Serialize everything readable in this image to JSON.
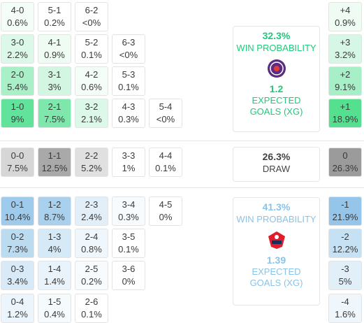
{
  "home": {
    "rows": [
      {
        "cells": [
          {
            "score": "4-0",
            "prob": "0.6%",
            "color": "#f4fdf8"
          },
          {
            "score": "5-1",
            "prob": "0.2%",
            "color": "#ffffff"
          },
          {
            "score": "6-2",
            "prob": "<0%",
            "color": "#ffffff"
          }
        ],
        "diff": {
          "label": "+4",
          "prob": "0.9%",
          "color": "#eefcf4"
        }
      },
      {
        "cells": [
          {
            "score": "3-0",
            "prob": "2.2%",
            "color": "#dcf8e9"
          },
          {
            "score": "4-1",
            "prob": "0.9%",
            "color": "#eefcf4"
          },
          {
            "score": "5-2",
            "prob": "0.1%",
            "color": "#ffffff"
          },
          {
            "score": "6-3",
            "prob": "<0%",
            "color": "#ffffff"
          }
        ],
        "diff": {
          "label": "+3",
          "prob": "3.2%",
          "color": "#d6f7e5"
        }
      },
      {
        "cells": [
          {
            "score": "2-0",
            "prob": "5.4%",
            "color": "#a9efc8"
          },
          {
            "score": "3-1",
            "prob": "3%",
            "color": "#d3f6e3"
          },
          {
            "score": "4-2",
            "prob": "0.6%",
            "color": "#f4fdf8"
          },
          {
            "score": "5-3",
            "prob": "0.1%",
            "color": "#ffffff"
          }
        ],
        "diff": {
          "label": "+2",
          "prob": "9.1%",
          "color": "#a6efc7"
        }
      },
      {
        "cells": [
          {
            "score": "1-0",
            "prob": "9%",
            "color": "#62e39c"
          },
          {
            "score": "2-1",
            "prob": "7.5%",
            "color": "#7ee8ac"
          },
          {
            "score": "3-2",
            "prob": "2.1%",
            "color": "#dcf8e9"
          },
          {
            "score": "4-3",
            "prob": "0.3%",
            "color": "#ffffff"
          },
          {
            "score": "5-4",
            "prob": "<0%",
            "color": "#ffffff"
          }
        ],
        "diff": {
          "label": "+1",
          "prob": "18.9%",
          "color": "#55e08f"
        }
      }
    ],
    "panel": {
      "prob": "32.3%",
      "label": "WIN PROBABILITY",
      "xg": "1.2",
      "xg_label": "EXPECTED GOALS (XG)",
      "color": "#1fca7a"
    }
  },
  "draw": {
    "rows": [
      {
        "cells": [
          {
            "score": "0-0",
            "prob": "7.5%",
            "color": "#d6d6d6"
          },
          {
            "score": "1-1",
            "prob": "12.5%",
            "color": "#a9a9a9"
          },
          {
            "score": "2-2",
            "prob": "5.2%",
            "color": "#e0e0e0"
          },
          {
            "score": "3-3",
            "prob": "1%",
            "color": "#ffffff"
          },
          {
            "score": "4-4",
            "prob": "0.1%",
            "color": "#ffffff"
          }
        ],
        "diff": {
          "label": "0",
          "prob": "26.3%",
          "color": "#9b9b9b"
        }
      }
    ],
    "panel": {
      "prob": "26.3%",
      "label": "DRAW",
      "color": "#444444"
    }
  },
  "away": {
    "rows": [
      {
        "cells": [
          {
            "score": "0-1",
            "prob": "10.4%",
            "color": "#9ecbeb"
          },
          {
            "score": "1-2",
            "prob": "8.7%",
            "color": "#a9d1ed"
          },
          {
            "score": "2-3",
            "prob": "2.4%",
            "color": "#e2eff9"
          },
          {
            "score": "3-4",
            "prob": "0.3%",
            "color": "#f7fbfe"
          },
          {
            "score": "4-5",
            "prob": "0%",
            "color": "#ffffff"
          }
        ],
        "diff": {
          "label": "-1",
          "prob": "21.9%",
          "color": "#95c6ea"
        }
      },
      {
        "cells": [
          {
            "score": "0-2",
            "prob": "7.3%",
            "color": "#bbdbf1"
          },
          {
            "score": "1-3",
            "prob": "4%",
            "color": "#d5e9f7"
          },
          {
            "score": "2-4",
            "prob": "0.8%",
            "color": "#f0f7fc"
          },
          {
            "score": "3-5",
            "prob": "0.1%",
            "color": "#ffffff"
          }
        ],
        "diff": {
          "label": "-2",
          "prob": "12.2%",
          "color": "#c6e1f4"
        }
      },
      {
        "cells": [
          {
            "score": "0-3",
            "prob": "3.4%",
            "color": "#d8eaf7"
          },
          {
            "score": "1-4",
            "prob": "1.4%",
            "color": "#e9f3fb"
          },
          {
            "score": "2-5",
            "prob": "0.2%",
            "color": "#f7fbfe"
          },
          {
            "score": "3-6",
            "prob": "0%",
            "color": "#ffffff"
          }
        ],
        "diff": {
          "label": "-3",
          "prob": "5%",
          "color": "#e1eff9"
        }
      },
      {
        "cells": [
          {
            "score": "0-4",
            "prob": "1.2%",
            "color": "#edf5fc"
          },
          {
            "score": "1-5",
            "prob": "0.4%",
            "color": "#f5fafd"
          },
          {
            "score": "2-6",
            "prob": "0.1%",
            "color": "#ffffff"
          }
        ],
        "diff": {
          "label": "-4",
          "prob": "1.6%",
          "color": "#f0f7fc"
        }
      }
    ],
    "panel": {
      "prob": "41.3%",
      "label": "WIN PROBABILITY",
      "xg": "1.39",
      "xg_label": "EXPECTED GOALS (XG)",
      "color": "#8ac3e6"
    }
  }
}
